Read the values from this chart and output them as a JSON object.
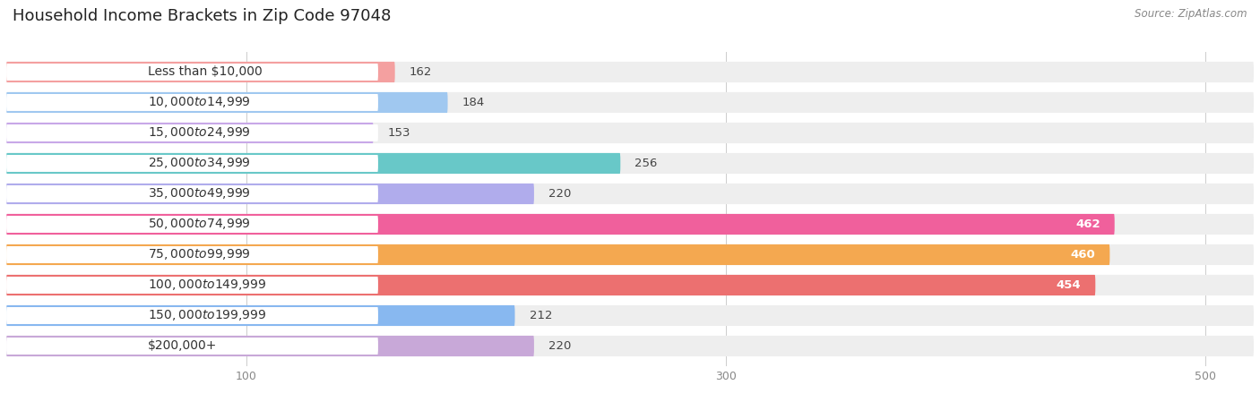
{
  "title": "Household Income Brackets in Zip Code 97048",
  "source": "Source: ZipAtlas.com",
  "categories": [
    "Less than $10,000",
    "$10,000 to $14,999",
    "$15,000 to $24,999",
    "$25,000 to $34,999",
    "$35,000 to $49,999",
    "$50,000 to $74,999",
    "$75,000 to $99,999",
    "$100,000 to $149,999",
    "$150,000 to $199,999",
    "$200,000+"
  ],
  "values": [
    162,
    184,
    153,
    256,
    220,
    462,
    460,
    454,
    212,
    220
  ],
  "colors": [
    "#F4A0A0",
    "#A0C8F0",
    "#C8A8E8",
    "#68C8C8",
    "#B0ACEC",
    "#F0609C",
    "#F4A850",
    "#EC7070",
    "#88B8F0",
    "#C8A8D8"
  ],
  "label_colors": [
    "#444444",
    "#444444",
    "#444444",
    "#444444",
    "#444444",
    "#ffffff",
    "#ffffff",
    "#ffffff",
    "#444444",
    "#444444"
  ],
  "xlim_max": 520,
  "xticks": [
    100,
    300,
    500
  ],
  "bar_height": 0.68,
  "bg_color": "#ffffff",
  "row_bg_color": "#eeeeee",
  "title_fontsize": 13,
  "label_fontsize": 10,
  "value_fontsize": 9.5
}
